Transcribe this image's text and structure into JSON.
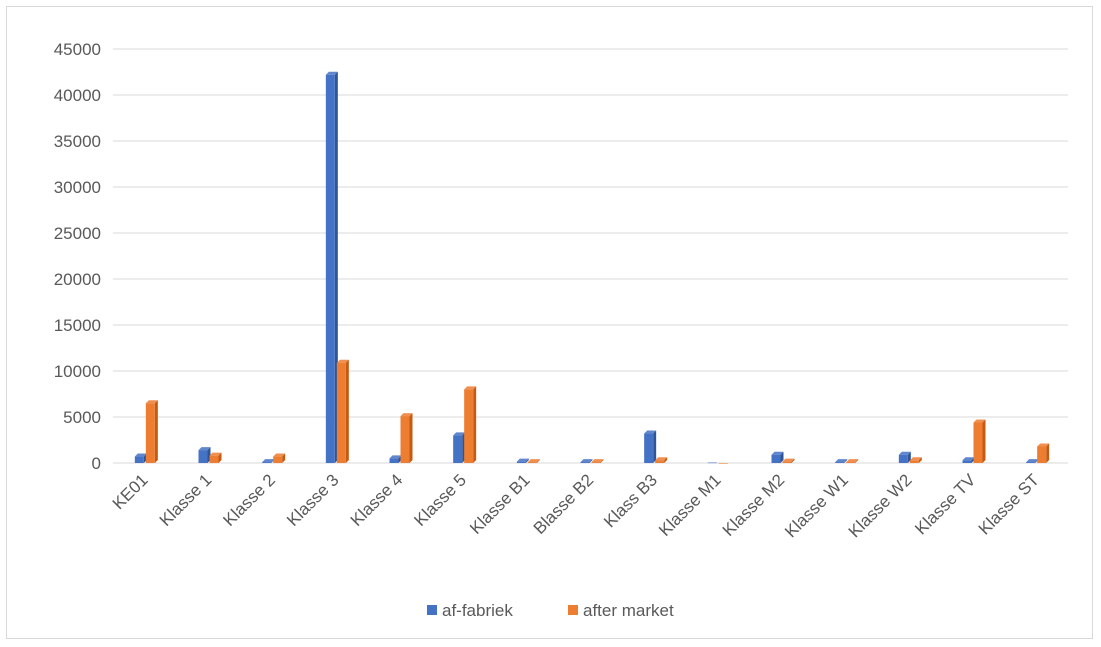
{
  "chart_data": {
    "type": "bar",
    "style": "3d-clustered-column",
    "title": "",
    "xlabel": "",
    "ylabel": "",
    "ylim": [
      0,
      45000
    ],
    "yticks": [
      0,
      5000,
      10000,
      15000,
      20000,
      25000,
      30000,
      35000,
      40000,
      45000
    ],
    "grid": true,
    "legend_position": "bottom",
    "categories": [
      "KE01",
      "Klasse 1",
      "Klasse 2",
      "Klasse 3",
      "Klasse 4",
      "Klasse 5",
      "Klasse B1",
      "Blasse B2",
      "Klass B3",
      "Klasse M1",
      "Klasse M2",
      "Klasse W1",
      "Klasse W2",
      "Klasse TV",
      "Klasse ST"
    ],
    "series": [
      {
        "name": "af-fabriek",
        "color": "#4472C4",
        "side_color": "#2F5597",
        "values": [
          700,
          1400,
          100,
          42200,
          500,
          3000,
          150,
          100,
          3200,
          50,
          900,
          100,
          900,
          300,
          100
        ]
      },
      {
        "name": "after market",
        "color": "#ED7D31",
        "side_color": "#C55A11",
        "values": [
          6500,
          800,
          700,
          10900,
          5100,
          8000,
          100,
          100,
          300,
          0,
          150,
          100,
          300,
          4400,
          1800
        ]
      }
    ]
  }
}
